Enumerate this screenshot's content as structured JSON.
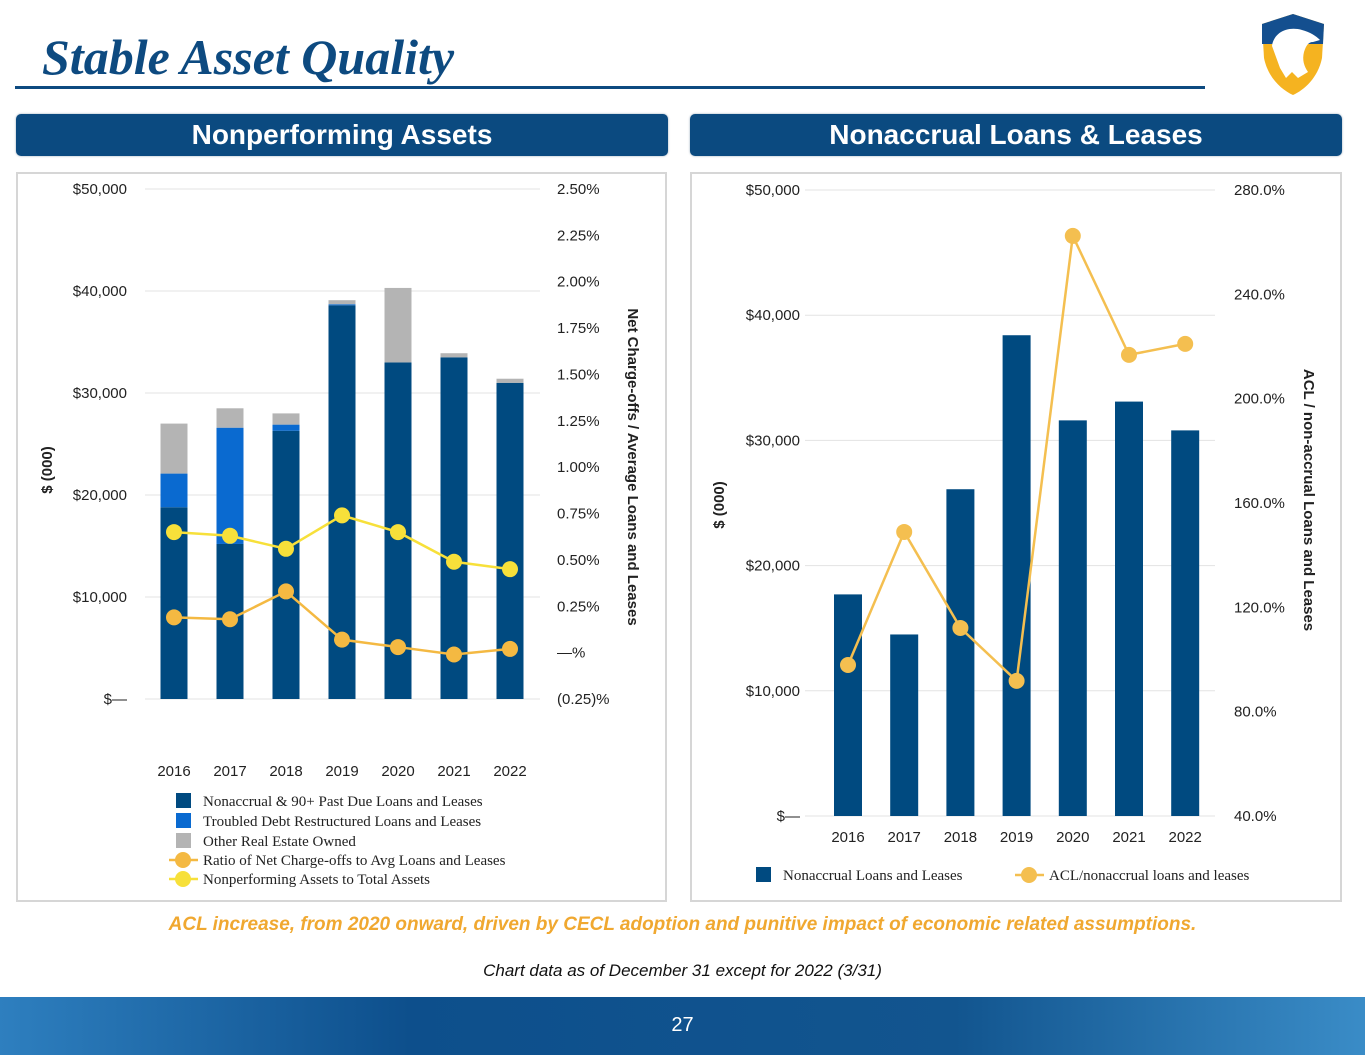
{
  "title": "Stable Asset Quality",
  "left_header": "Nonperforming Assets",
  "right_header": "Nonaccrual Loans & Leases",
  "note_orange": "ACL increase, from 2020 onward, driven by CECL adoption and punitive impact of economic related assumptions.",
  "note_black": "Chart data as of December 31 except for 2022 (3/31)",
  "page_number": "27",
  "colors": {
    "navy": "#004a80",
    "tdr": "#0a6ad0",
    "oreo": "#b4b4b4",
    "nco": "#f4b942",
    "npa": "#f7e03a",
    "acl": "#f4bf50"
  },
  "chart_data": [
    {
      "type": "bar",
      "title": "Nonperforming Assets",
      "categories": [
        "2016",
        "2017",
        "2018",
        "2019",
        "2020",
        "2021",
        "2022"
      ],
      "ylabel": "$ (000)",
      "y2label": "Net Charge-offs / Average Loans and Leases",
      "ylim": [
        0,
        50000
      ],
      "y2lim": [
        -0.25,
        2.5
      ],
      "y_ticks": [
        "$50,000",
        "$40,000",
        "$30,000",
        "$20,000",
        "$10,000",
        "$—"
      ],
      "y2_ticks": [
        "2.50%",
        "2.25%",
        "2.00%",
        "1.75%",
        "1.50%",
        "1.25%",
        "1.00%",
        "0.75%",
        "0.50%",
        "0.25%",
        "—%",
        "(0.25)%"
      ],
      "series": [
        {
          "name": "Nonaccrual & 90+ Past Due Loans and Leases",
          "kind": "bar",
          "values": [
            18800,
            15200,
            26300,
            38600,
            33000,
            33500,
            31000
          ]
        },
        {
          "name": "Troubled Debt Restructured Loans and Leases",
          "kind": "bar",
          "values": [
            3300,
            11400,
            600,
            100,
            0,
            0,
            0
          ]
        },
        {
          "name": "Other Real Estate Owned",
          "kind": "bar",
          "values": [
            4900,
            1900,
            1100,
            400,
            7300,
            400,
            400
          ]
        },
        {
          "name": "Ratio of Net Charge-offs to Avg Loans and Leases",
          "kind": "line",
          "axis": "y2",
          "values": [
            0.19,
            0.18,
            0.33,
            0.07,
            0.03,
            -0.01,
            0.02
          ]
        },
        {
          "name": "Nonperforming Assets to Total Assets",
          "kind": "line",
          "axis": "y2",
          "values": [
            0.65,
            0.63,
            0.56,
            0.74,
            0.65,
            0.49,
            0.45
          ]
        }
      ],
      "legend_position": "bottom"
    },
    {
      "type": "bar",
      "title": "Nonaccrual Loans & Leases",
      "categories": [
        "2016",
        "2017",
        "2018",
        "2019",
        "2020",
        "2021",
        "2022"
      ],
      "ylabel": "$ (000)",
      "y2label": "ACL / non-accrual Loans and Leases",
      "ylim": [
        0,
        50000
      ],
      "y2lim": [
        40,
        280
      ],
      "y_ticks": [
        "$50,000",
        "$40,000",
        "$30,000",
        "$20,000",
        "$10,000",
        "$—"
      ],
      "y2_ticks": [
        "280.0%",
        "240.0%",
        "200.0%",
        "160.0%",
        "120.0%",
        "80.0%",
        "40.0%"
      ],
      "series": [
        {
          "name": "Nonaccrual Loans and Leases",
          "kind": "bar",
          "values": [
            17700,
            14500,
            26100,
            38400,
            31600,
            33100,
            30800
          ]
        },
        {
          "name": "ACL/nonaccrual loans and leases",
          "kind": "line",
          "axis": "y2",
          "values": [
            97.9,
            148.9,
            112.1,
            91.8,
            262.4,
            216.8,
            221.0
          ]
        }
      ],
      "legend_position": "bottom"
    }
  ]
}
